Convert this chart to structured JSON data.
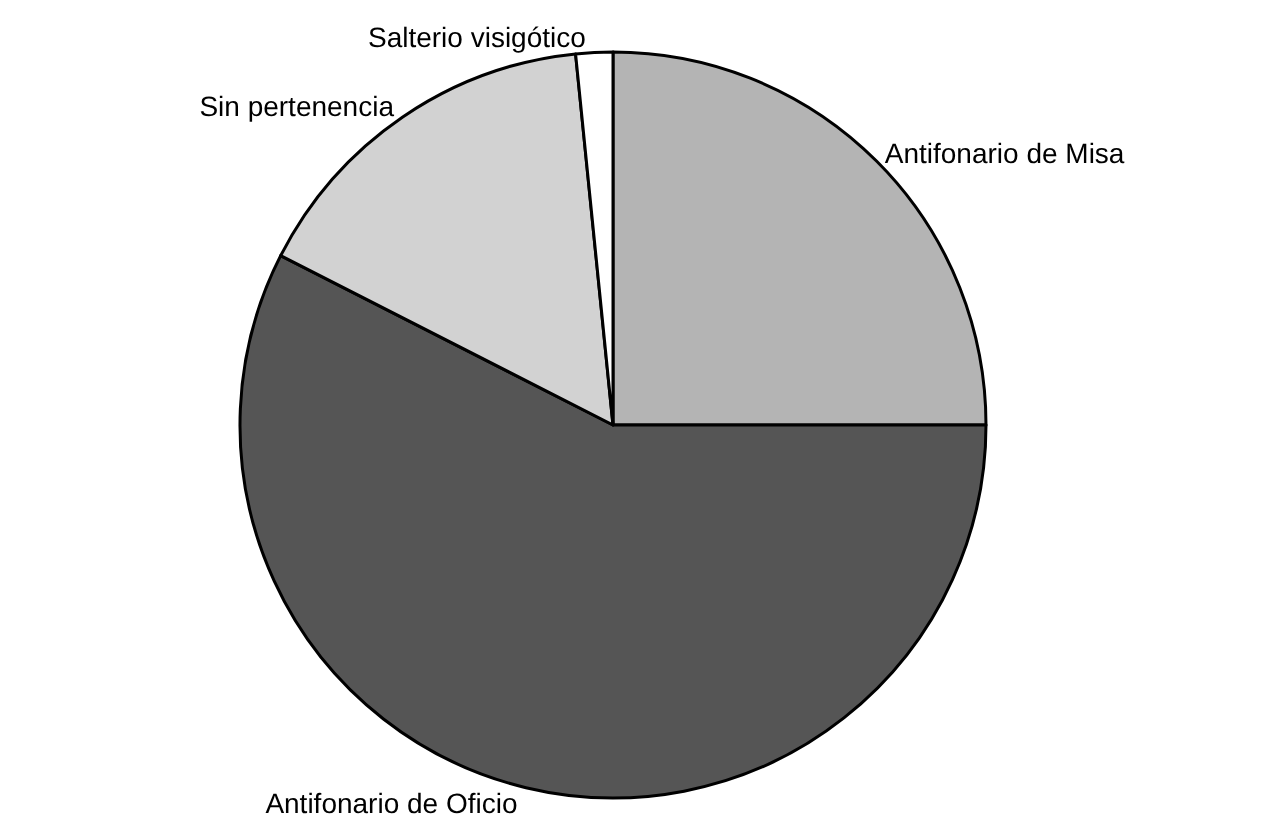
{
  "chart_data": {
    "type": "pie",
    "categories": [
      "Antifonario de Misa",
      "Antifonario de Oficio",
      "Sin pertenencia",
      "Salterio visigótico"
    ],
    "values": [
      25,
      57.5,
      15.9,
      1.6
    ],
    "colors": [
      "#b4b4b4",
      "#555555",
      "#d2d2d2",
      "#ffffff"
    ],
    "legend": false
  }
}
